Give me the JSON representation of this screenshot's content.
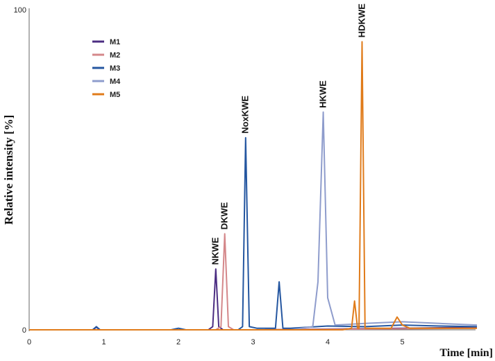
{
  "chart_data": {
    "type": "line",
    "title": "",
    "xlabel": "Time [min]",
    "ylabel": "Relative intensity [%]",
    "xlim": [
      0,
      6
    ],
    "ylim": [
      0,
      100
    ],
    "x_ticks": [
      "0",
      "1",
      "2",
      "3",
      "4",
      "5"
    ],
    "y_ticks": [
      "0",
      "100"
    ],
    "legend_placement": "upper-left",
    "series": [
      {
        "name": "M1",
        "color": "#4b2d82",
        "x": [
          0,
          0.85,
          0.9,
          0.95,
          2.4,
          2.46,
          2.5,
          2.54,
          2.6,
          3.0,
          5.0,
          6.0
        ],
        "y": [
          0,
          0,
          0.8,
          0,
          0,
          1,
          19,
          1,
          0,
          0,
          0.5,
          0.8
        ]
      },
      {
        "name": "M2",
        "color": "#d4878a",
        "x": [
          0,
          2.5,
          2.57,
          2.62,
          2.67,
          2.74,
          3.0,
          6.0
        ],
        "y": [
          0,
          0,
          1,
          30,
          1,
          0,
          0,
          0.5
        ]
      },
      {
        "name": "M3",
        "color": "#2456a0",
        "x": [
          0,
          0.85,
          0.9,
          0.95,
          1.9,
          2.0,
          2.1,
          2.8,
          2.86,
          2.9,
          2.95,
          3.05,
          3.3,
          3.35,
          3.4,
          3.5,
          4.0,
          4.5,
          5.0,
          5.5,
          6.0
        ],
        "y": [
          0,
          0,
          1,
          0,
          0,
          0.5,
          0,
          0,
          1,
          60,
          1,
          0.5,
          0.5,
          15,
          0.5,
          0.5,
          1.2,
          1,
          1.5,
          1.2,
          1
        ]
      },
      {
        "name": "M4",
        "color": "#8e9ccc",
        "x": [
          0,
          3.5,
          3.8,
          3.87,
          3.94,
          4.0,
          4.1,
          4.5,
          5.0,
          5.5,
          6.0
        ],
        "y": [
          0,
          0,
          1,
          15,
          68,
          10,
          1.5,
          2,
          2.5,
          2,
          1.5
        ]
      },
      {
        "name": "M5",
        "color": "#e07b1a",
        "x": [
          0,
          4.2,
          4.32,
          4.36,
          4.4,
          4.42,
          4.46,
          4.5,
          4.55,
          4.85,
          4.93,
          5.0,
          5.1,
          6.0
        ],
        "y": [
          0,
          0,
          0.5,
          9,
          0.5,
          0.5,
          90,
          0.5,
          0.5,
          0.5,
          4,
          1.5,
          0.5,
          0.5
        ]
      }
    ],
    "annotations": [
      {
        "text": "NKWE",
        "x": 2.5,
        "y": 19
      },
      {
        "text": "DKWE",
        "x": 2.62,
        "y": 30
      },
      {
        "text": "NoxKWE",
        "x": 2.9,
        "y": 60
      },
      {
        "text": "HKWE",
        "x": 3.94,
        "y": 68
      },
      {
        "text": "HDKWE",
        "x": 4.46,
        "y": 90
      }
    ]
  }
}
